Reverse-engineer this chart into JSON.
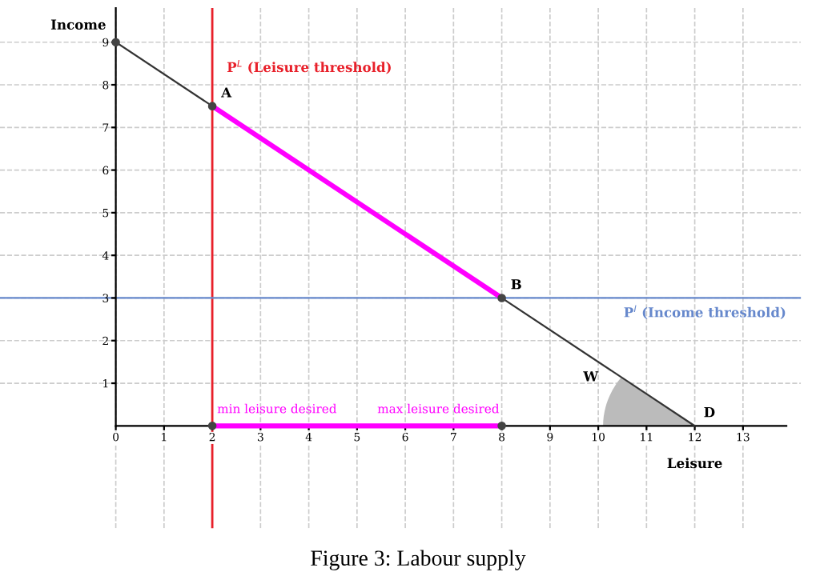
{
  "chart_data": {
    "type": "line",
    "xlabel": "Leisure",
    "ylabel": "Income",
    "xlim": [
      -2.4,
      14.2
    ],
    "ylim": [
      -2.4,
      9.8
    ],
    "xticks": [
      0,
      1,
      2,
      3,
      4,
      5,
      6,
      7,
      8,
      9,
      10,
      11,
      12,
      13
    ],
    "yticks": [
      1,
      2,
      3,
      4,
      5,
      6,
      7,
      8,
      9
    ],
    "grid": true,
    "line_style": "solid",
    "series": [
      {
        "type": "line",
        "color": "#333333",
        "x": [
          0,
          12
        ],
        "values": [
          9,
          0
        ]
      },
      {
        "type": "line",
        "color": "#ff00ff",
        "x": [
          2,
          8
        ],
        "values": [
          7.5,
          3
        ]
      },
      {
        "type": "line",
        "color": "#ff00ff",
        "x": [
          2,
          8
        ],
        "values": [
          0,
          0
        ]
      },
      {
        "type": "scatter",
        "color": "#444444",
        "marker": "circle",
        "x": [
          0,
          2,
          8,
          2,
          8
        ],
        "values": [
          9,
          7.5,
          3,
          0,
          0
        ]
      }
    ],
    "ref_lines": [
      {
        "axis": "x",
        "value": 2,
        "label": "P$^{L}$ (Leisure threshold)",
        "color": "#e8202a"
      },
      {
        "axis": "y",
        "value": 3,
        "label": "P$^{I}$ (Income threshold)",
        "color": "#6688cc"
      }
    ],
    "annotations": [
      {
        "text": "A",
        "x": 2,
        "y": 7.5
      },
      {
        "text": "B",
        "x": 8,
        "y": 3
      },
      {
        "text": "D",
        "x": 12,
        "y": 0
      },
      "W",
      "min leisure desired",
      "max leisure desired",
      "Figure 3: Labour supply"
    ]
  }
}
